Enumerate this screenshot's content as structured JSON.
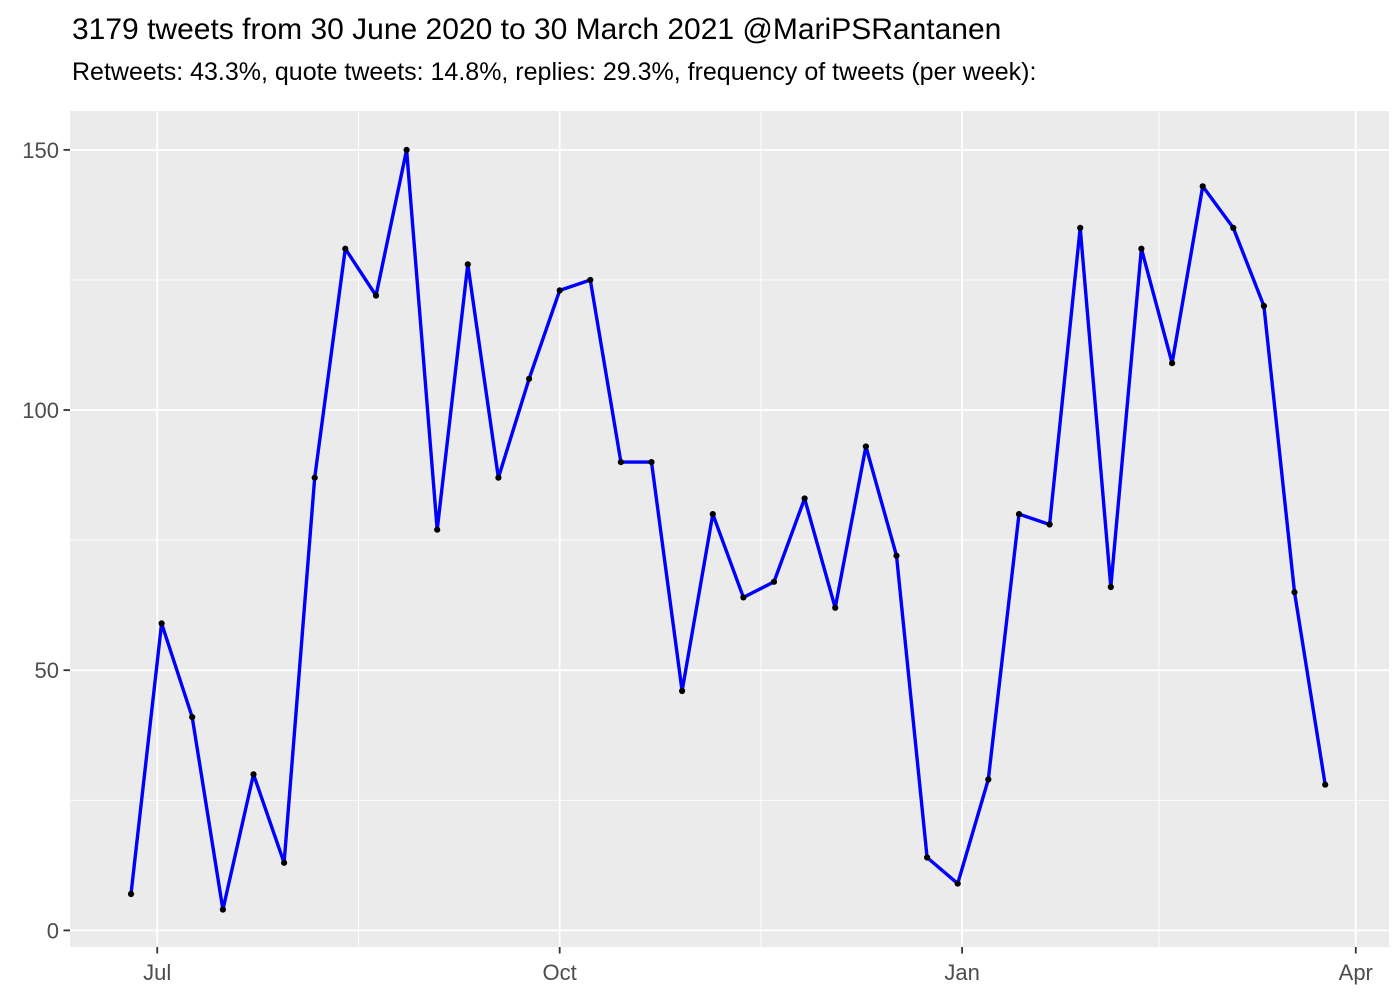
{
  "header": {
    "title": "3179 tweets from 30 June 2020 to 30 March 2021 @MariPSRantanen",
    "subtitle": "Retweets: 43.3%, quote tweets: 14.8%, replies: 29.3%, frequency of tweets (per week):"
  },
  "chart_data": {
    "type": "line",
    "title": "3179 tweets from 30 June 2020 to 30 March 2021 @MariPSRantanen",
    "subtitle": "Retweets: 43.3%, quote tweets: 14.8%, replies: 29.3%, frequency of tweets (per week):",
    "description": "Frequency of tweets per week, one point per week, 40 weeks",
    "total_tweets": 3179,
    "series": [
      {
        "name": "tweets per week",
        "color": "#0000FF",
        "point_color": "#000000",
        "interval_days": 7,
        "values": [
          7,
          59,
          41,
          4,
          30,
          13,
          87,
          131,
          122,
          150,
          77,
          128,
          87,
          106,
          123,
          125,
          90,
          90,
          46,
          80,
          64,
          67,
          83,
          62,
          93,
          72,
          14,
          9,
          29,
          80,
          78,
          135,
          66,
          131,
          109,
          143,
          135,
          120,
          65,
          28
        ]
      }
    ],
    "x_axis": {
      "label": "",
      "tick_labels": [
        "Jul",
        "Oct",
        "Jan",
        "Apr"
      ],
      "tick_day_offsets": [
        6,
        98,
        190,
        280
      ],
      "minor_gridline_day_offsets": [
        52,
        144,
        235
      ]
    },
    "y_axis": {
      "label": "",
      "tick_labels": [
        "0",
        "50",
        "100",
        "150"
      ],
      "tick_values": [
        0,
        50,
        100,
        150
      ],
      "minor_gridline_values": [
        25,
        75,
        125
      ],
      "ylim": [
        -3.3,
        157.5
      ]
    },
    "style": {
      "panel_background": "#EBEBEB",
      "grid_color": "#FFFFFF",
      "axis_text_color": "#4D4D4D",
      "tick_mark_color": "#333333",
      "legend": "none",
      "grid": "on"
    }
  }
}
